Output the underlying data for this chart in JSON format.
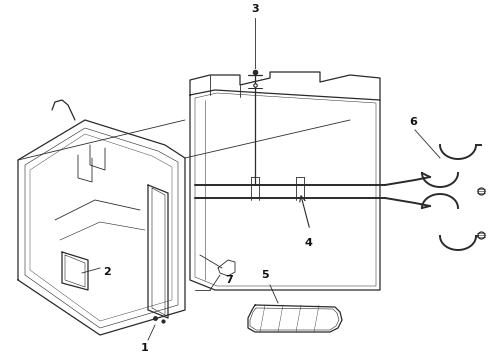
{
  "background_color": "#ffffff",
  "line_color": "#2a2a2a",
  "label_color": "#111111",
  "figsize": [
    4.9,
    3.6
  ],
  "dpi": 100,
  "lw_thin": 0.6,
  "lw_med": 0.9,
  "lw_thick": 1.4
}
